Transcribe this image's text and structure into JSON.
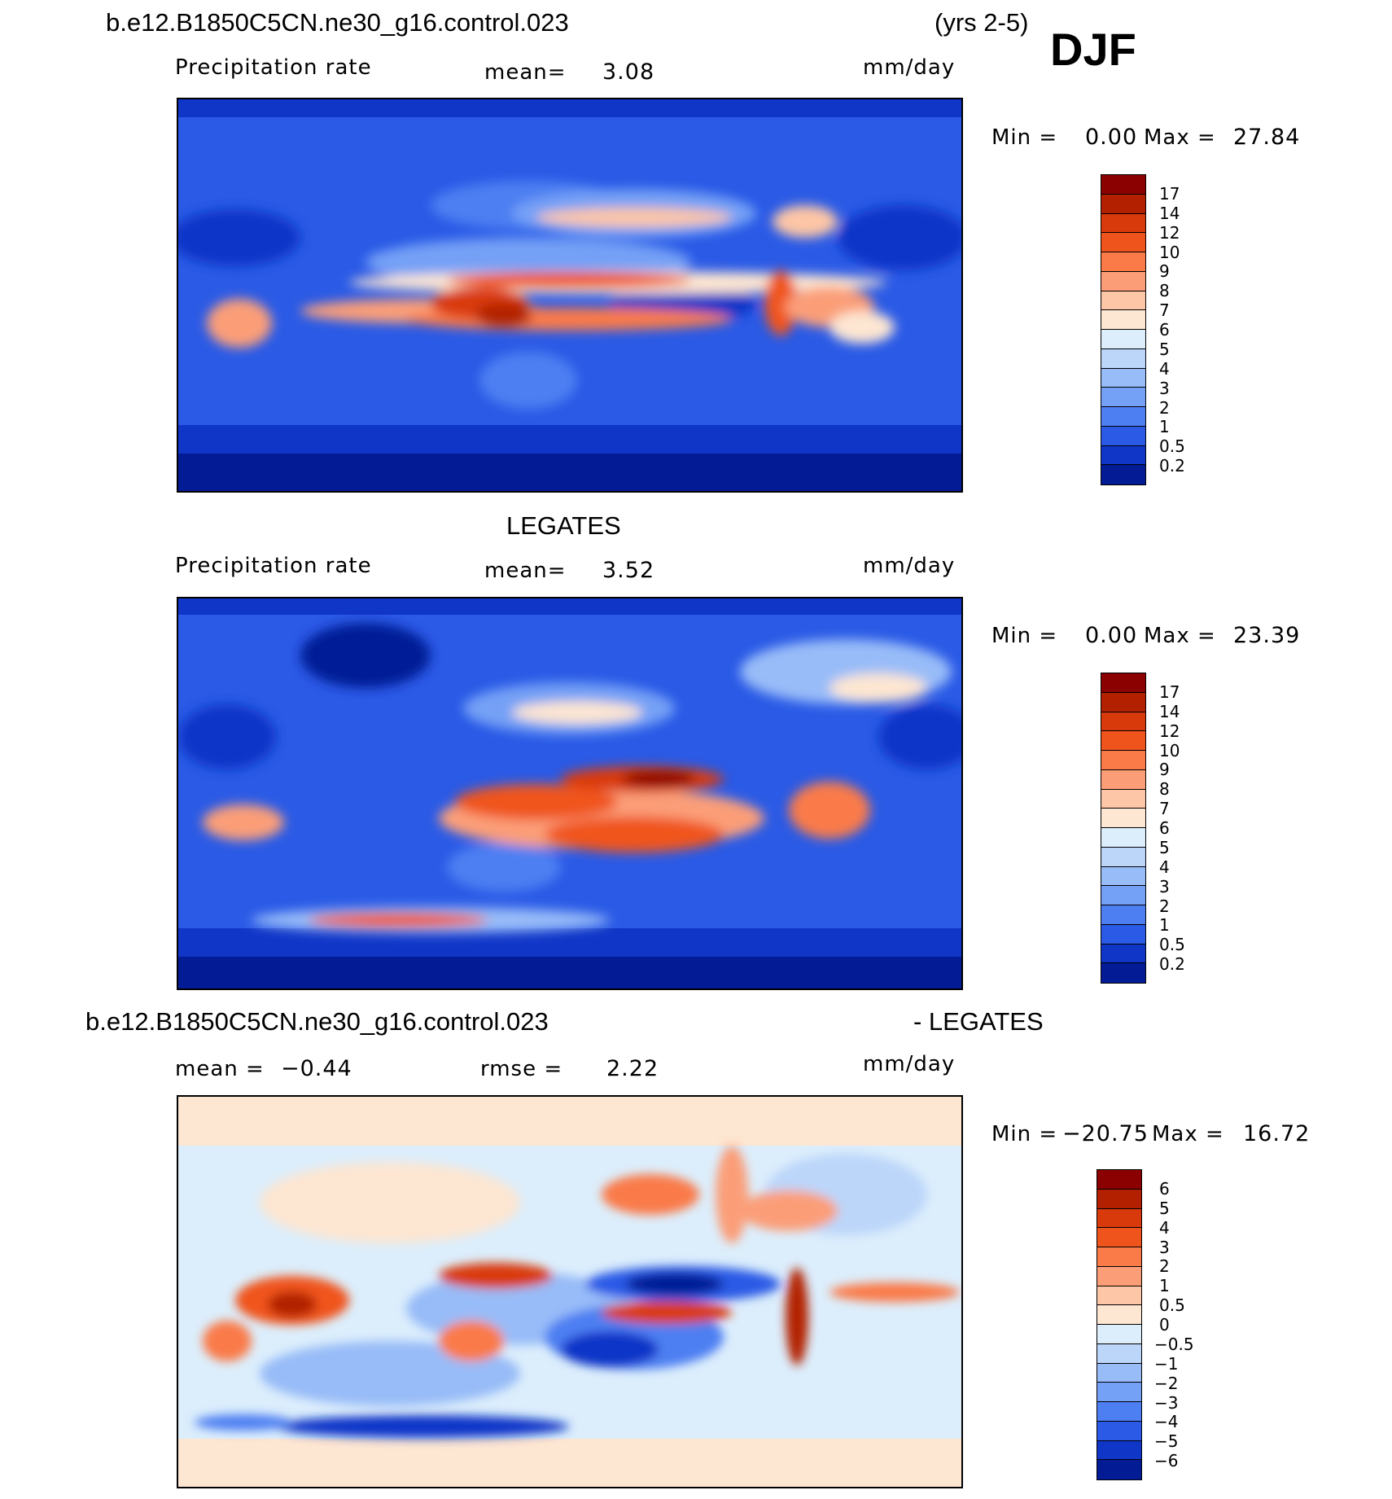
{
  "header": {
    "case_name": "b.e12.B1850C5CN.ne30_g16.control.023",
    "years": "(yrs 2-5)",
    "season": "DJF"
  },
  "panels": [
    {
      "title": "",
      "variable": "Precipitation rate",
      "mean_label": "mean=",
      "mean_value": "3.08",
      "units": "mm/day",
      "min_label": "Min =",
      "min_value": "0.00",
      "max_label": "Max =",
      "max_value": "27.84",
      "map_description": "model DJF precipitation"
    },
    {
      "title": "LEGATES",
      "variable": "Precipitation rate",
      "mean_label": "mean=",
      "mean_value": "3.52",
      "units": "mm/day",
      "min_label": "Min =",
      "min_value": "0.00",
      "max_label": "Max =",
      "max_value": "23.39",
      "map_description": "observed DJF precipitation"
    },
    {
      "title_left": "b.e12.B1850C5CN.ne30_g16.control.023",
      "title_right": "- LEGATES",
      "mean_label": "mean =",
      "mean_value": "−0.44",
      "rmse_label": "rmse =",
      "rmse_value": "2.22",
      "units": "mm/day",
      "min_label": "Min =",
      "min_value": "−20.75",
      "max_label": "Max =",
      "max_value": "16.72",
      "map_description": "model minus observations difference"
    }
  ],
  "colorbars": {
    "precip": {
      "ticks": [
        "17",
        "14",
        "12",
        "10",
        "9",
        "8",
        "7",
        "6",
        "5",
        "4",
        "3",
        "2",
        "1",
        "0.5",
        "0.2"
      ],
      "colors": [
        "#8b0000",
        "#b22000",
        "#d93a0c",
        "#f0541d",
        "#fa7a48",
        "#fb9e78",
        "#fdc6a6",
        "#fde6d2",
        "#dceefc",
        "#bcd6fa",
        "#98bcf8",
        "#74a0f6",
        "#4e7ff2",
        "#2a5ae6",
        "#1036c8",
        "#031c96"
      ]
    },
    "diff": {
      "ticks": [
        "6",
        "5",
        "4",
        "3",
        "2",
        "1",
        "0.5",
        "0",
        "−0.5",
        "−1",
        "−2",
        "−3",
        "−4",
        "−5",
        "−6"
      ],
      "colors": [
        "#8b0000",
        "#b22000",
        "#d93a0c",
        "#f0541d",
        "#fa7a48",
        "#fb9e78",
        "#fdc6a6",
        "#fde6d2",
        "#dceefc",
        "#bcd6fa",
        "#98bcf8",
        "#74a0f6",
        "#4e7ff2",
        "#2a5ae6",
        "#1036c8",
        "#031c96"
      ]
    }
  }
}
